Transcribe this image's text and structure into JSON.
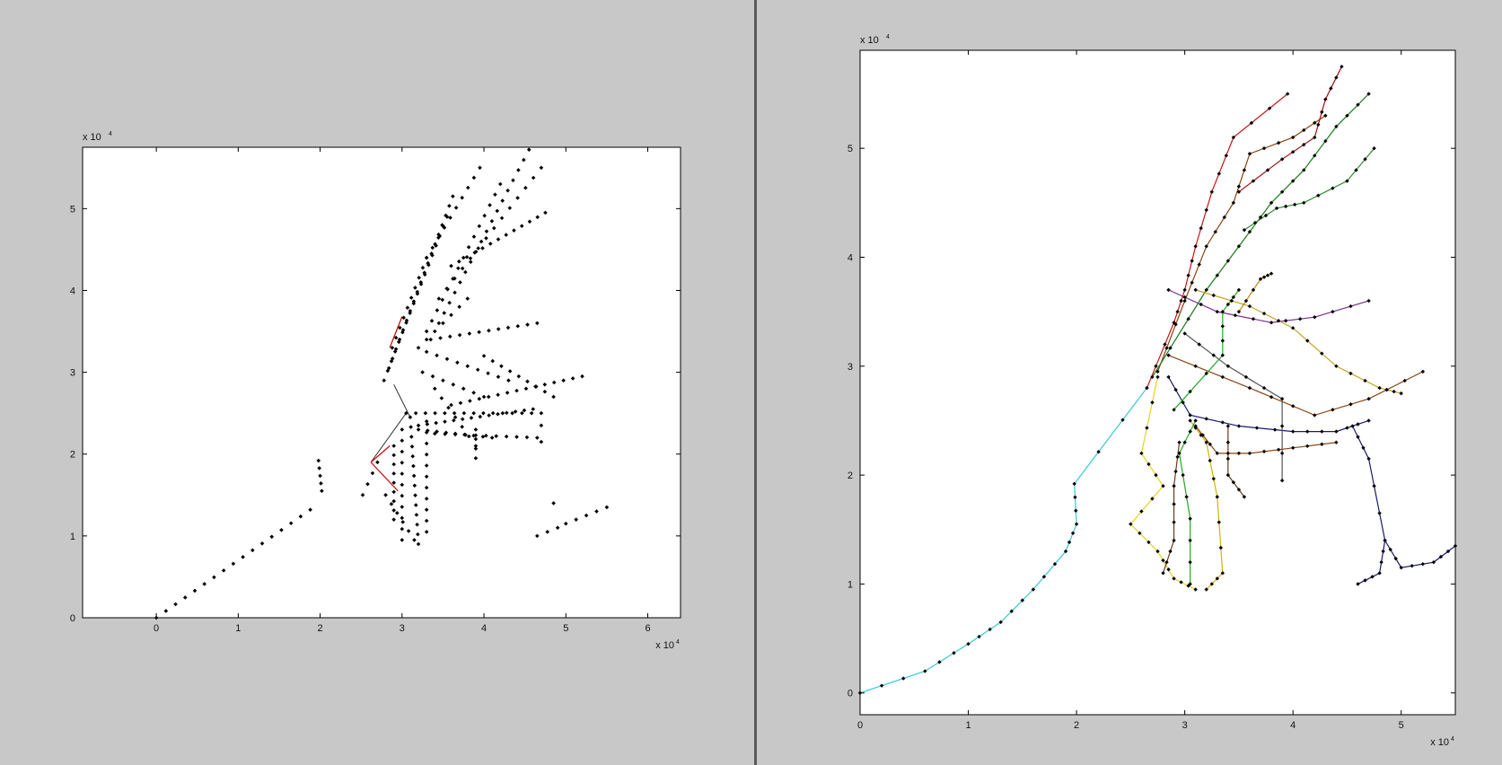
{
  "chart_data": [
    {
      "type": "scatter",
      "title": "",
      "xlabel": "",
      "ylabel": "",
      "x_multiplier": "x 10",
      "y_multiplier": "x 10",
      "exponent": "4",
      "xlim": [
        -0.9,
        6.4
      ],
      "ylim": [
        0,
        5.75
      ],
      "xticks": [
        0,
        1,
        2,
        3,
        4,
        5,
        6
      ],
      "yticks": [
        0,
        1,
        2,
        3,
        4,
        5
      ],
      "grid": false,
      "marker_color": "#000000",
      "highlight_color": "#cc0000",
      "highlight_segments": [
        [
          [
            2.62,
            1.9
          ],
          [
            2.95,
            1.55
          ]
        ],
        [
          [
            2.62,
            1.9
          ],
          [
            2.85,
            2.1
          ]
        ],
        [
          [
            2.85,
            3.3
          ],
          [
            3.0,
            3.68
          ]
        ]
      ],
      "connector_segments": [
        [
          [
            2.62,
            1.9
          ],
          [
            3.05,
            2.5
          ]
        ],
        [
          [
            2.9,
            2.85
          ],
          [
            3.1,
            2.45
          ]
        ]
      ],
      "point_lines": [
        {
          "from": [
            0.0,
            0.0
          ],
          "to": [
            1.88,
            1.32
          ],
          "n": 17
        },
        {
          "from": [
            1.98,
            1.92
          ],
          "to": [
            2.02,
            1.55
          ],
          "n": 5
        },
        {
          "from": [
            2.52,
            1.5
          ],
          "to": [
            2.7,
            1.9
          ],
          "n": 4
        },
        {
          "from": [
            2.88,
            3.3
          ],
          "to": [
            3.3,
            4.4
          ],
          "n": 10
        },
        {
          "from": [
            2.78,
            2.9
          ],
          "to": [
            3.55,
            4.9
          ],
          "n": 18
        },
        {
          "from": [
            2.84,
            3.05
          ],
          "to": [
            3.62,
            5.15
          ],
          "n": 19
        },
        {
          "from": [
            3.3,
            4.4
          ],
          "to": [
            3.95,
            5.5
          ],
          "n": 10
        },
        {
          "from": [
            3.3,
            3.5
          ],
          "to": [
            4.2,
            5.3
          ],
          "n": 15
        },
        {
          "from": [
            3.45,
            3.6
          ],
          "to": [
            4.55,
            5.72
          ],
          "n": 18
        },
        {
          "from": [
            3.45,
            3.9
          ],
          "to": [
            4.7,
            5.5
          ],
          "n": 14
        },
        {
          "from": [
            3.6,
            4.3
          ],
          "to": [
            4.75,
            4.95
          ],
          "n": 13
        },
        {
          "from": [
            3.2,
            3.3
          ],
          "to": [
            3.8,
            3.9
          ],
          "n": 7
        },
        {
          "from": [
            3.35,
            3.4
          ],
          "to": [
            4.65,
            3.6
          ],
          "n": 12
        },
        {
          "from": [
            3.3,
            3.25
          ],
          "to": [
            4.3,
            2.9
          ],
          "n": 9
        },
        {
          "from": [
            4.0,
            3.2
          ],
          "to": [
            4.85,
            2.7
          ],
          "n": 9
        },
        {
          "from": [
            3.25,
            3.0
          ],
          "to": [
            4.0,
            2.7
          ],
          "n": 7
        },
        {
          "from": [
            3.6,
            2.6
          ],
          "to": [
            5.2,
            2.95
          ],
          "n": 15
        },
        {
          "from": [
            3.05,
            2.5
          ],
          "to": [
            4.7,
            2.5
          ],
          "n": 15
        },
        {
          "from": [
            3.2,
            2.35
          ],
          "to": [
            4.6,
            2.55
          ],
          "n": 14
        },
        {
          "from": [
            3.2,
            2.3
          ],
          "to": [
            4.1,
            2.2
          ],
          "n": 9
        },
        {
          "from": [
            3.4,
            2.25
          ],
          "to": [
            4.65,
            2.2
          ],
          "n": 11
        },
        {
          "from": [
            3.9,
            2.3
          ],
          "to": [
            3.9,
            1.95
          ],
          "n": 4
        },
        {
          "from": [
            3.4,
            2.8
          ],
          "to": [
            3.9,
            2.1
          ],
          "n": 7
        },
        {
          "from": [
            3.1,
            2.45
          ],
          "to": [
            3.2,
            0.9
          ],
          "n": 14
        },
        {
          "from": [
            3.0,
            2.3
          ],
          "to": [
            3.0,
            0.95
          ],
          "n": 11
        },
        {
          "from": [
            2.9,
            2.1
          ],
          "to": [
            2.9,
            1.2
          ],
          "n": 9
        },
        {
          "from": [
            3.3,
            2.4
          ],
          "to": [
            3.3,
            1.05
          ],
          "n": 11
        },
        {
          "from": [
            2.8,
            1.5
          ],
          "to": [
            3.15,
            0.95
          ],
          "n": 6
        },
        {
          "from": [
            4.65,
            1.0
          ],
          "to": [
            4.9,
            1.1
          ],
          "n": 3
        },
        {
          "from": [
            5.0,
            1.15
          ],
          "to": [
            5.5,
            1.35
          ],
          "n": 5
        },
        {
          "from": [
            4.85,
            1.4
          ],
          "to": [
            4.85,
            1.4
          ],
          "n": 1
        },
        {
          "from": [
            4.7,
            2.35
          ],
          "to": [
            4.7,
            2.15
          ],
          "n": 2
        }
      ]
    },
    {
      "type": "line",
      "title": "",
      "xlabel": "",
      "ylabel": "",
      "x_multiplier": "x 10",
      "y_multiplier": "x 10",
      "exponent": "4",
      "xlim": [
        0,
        5.5
      ],
      "ylim": [
        -0.2,
        5.9
      ],
      "xticks": [
        0,
        1,
        2,
        3,
        4,
        5
      ],
      "yticks": [
        0,
        1,
        2,
        3,
        4,
        5
      ],
      "grid": false,
      "marker_color": "#000000",
      "series": [
        {
          "color": "#37c8d2",
          "points": [
            [
              0.0,
              0.0
            ],
            [
              0.6,
              0.2
            ],
            [
              1.0,
              0.45
            ],
            [
              1.3,
              0.65
            ],
            [
              1.6,
              0.95
            ],
            [
              1.9,
              1.3
            ],
            [
              2.0,
              1.55
            ],
            [
              1.98,
              1.92
            ],
            [
              2.65,
              2.8
            ]
          ]
        },
        {
          "color": "#c81414",
          "points": [
            [
              2.65,
              2.8
            ],
            [
              2.9,
              3.4
            ],
            [
              3.0,
              3.7
            ],
            [
              3.1,
              4.1
            ],
            [
              3.25,
              4.6
            ],
            [
              3.45,
              5.1
            ],
            [
              3.95,
              5.5
            ]
          ]
        },
        {
          "color": "#8b4513",
          "points": [
            [
              2.75,
              2.95
            ],
            [
              3.0,
              3.6
            ],
            [
              3.2,
              4.1
            ],
            [
              3.45,
              4.5
            ],
            [
              3.6,
              4.95
            ],
            [
              4.0,
              5.1
            ],
            [
              4.3,
              5.3
            ]
          ]
        },
        {
          "color": "#a01010",
          "points": [
            [
              3.5,
              4.6
            ],
            [
              3.9,
              4.9
            ],
            [
              4.2,
              5.1
            ],
            [
              4.3,
              5.45
            ],
            [
              4.45,
              5.75
            ]
          ]
        },
        {
          "color": "#1a7a1a",
          "points": [
            [
              2.7,
              2.9
            ],
            [
              3.2,
              3.7
            ],
            [
              3.5,
              4.1
            ],
            [
              3.8,
              4.5
            ],
            [
              4.1,
              4.8
            ],
            [
              4.4,
              5.2
            ],
            [
              4.7,
              5.5
            ]
          ]
        },
        {
          "color": "#2e8b2e",
          "points": [
            [
              3.55,
              4.25
            ],
            [
              3.85,
              4.45
            ],
            [
              4.1,
              4.5
            ],
            [
              4.5,
              4.7
            ],
            [
              4.75,
              5.0
            ]
          ]
        },
        {
          "color": "#7b2d8b",
          "points": [
            [
              2.85,
              3.7
            ],
            [
              3.3,
              3.5
            ],
            [
              3.8,
              3.4
            ],
            [
              4.2,
              3.45
            ],
            [
              4.7,
              3.6
            ]
          ]
        },
        {
          "color": "#c8a028",
          "points": [
            [
              3.1,
              3.7
            ],
            [
              3.6,
              3.55
            ],
            [
              4.0,
              3.35
            ],
            [
              4.4,
              3.0
            ],
            [
              4.8,
              2.8
            ],
            [
              5.0,
              2.75
            ]
          ]
        },
        {
          "color": "#b8860b",
          "points": [
            [
              3.5,
              3.5
            ],
            [
              3.7,
              3.8
            ],
            [
              3.8,
              3.85
            ]
          ]
        },
        {
          "color": "#8b4513",
          "points": [
            [
              2.85,
              3.1
            ],
            [
              3.6,
              2.8
            ],
            [
              4.2,
              2.55
            ],
            [
              4.7,
              2.7
            ],
            [
              5.2,
              2.95
            ]
          ]
        },
        {
          "color": "#191970",
          "points": [
            [
              2.85,
              2.9
            ],
            [
              3.05,
              2.55
            ],
            [
              3.5,
              2.45
            ],
            [
              4.0,
              2.4
            ],
            [
              4.4,
              2.4
            ],
            [
              4.7,
              2.5
            ]
          ]
        },
        {
          "color": "#191970",
          "points": [
            [
              4.55,
              2.45
            ],
            [
              4.7,
              2.15
            ],
            [
              4.85,
              1.4
            ],
            [
              5.0,
              1.15
            ],
            [
              5.3,
              1.2
            ],
            [
              5.5,
              1.35
            ]
          ]
        },
        {
          "color": "#191970",
          "points": [
            [
              4.6,
              1.0
            ],
            [
              4.8,
              1.1
            ],
            [
              4.85,
              1.4
            ]
          ]
        },
        {
          "color": "#e6d21e",
          "points": [
            [
              2.75,
              2.9
            ],
            [
              2.6,
              2.2
            ],
            [
              2.8,
              1.9
            ],
            [
              2.5,
              1.55
            ],
            [
              2.75,
              1.3
            ],
            [
              2.9,
              1.05
            ],
            [
              3.1,
              0.95
            ]
          ]
        },
        {
          "color": "#d4b400",
          "points": [
            [
              3.05,
              2.5
            ],
            [
              3.2,
              2.3
            ],
            [
              3.3,
              1.8
            ],
            [
              3.35,
              1.1
            ],
            [
              3.2,
              0.95
            ]
          ]
        },
        {
          "color": "#22aa22",
          "points": [
            [
              2.9,
              2.6
            ],
            [
              3.35,
              3.1
            ],
            [
              3.35,
              3.5
            ],
            [
              3.5,
              3.7
            ]
          ]
        },
        {
          "color": "#22aa22",
          "points": [
            [
              3.1,
              2.5
            ],
            [
              2.95,
              2.2
            ],
            [
              3.05,
              1.6
            ],
            [
              3.05,
              1.0
            ]
          ]
        },
        {
          "color": "#555555",
          "points": [
            [
              3.0,
              3.3
            ],
            [
              3.4,
              3.0
            ],
            [
              3.9,
              2.7
            ],
            [
              3.9,
              1.95
            ]
          ]
        },
        {
          "color": "#8b4513",
          "points": [
            [
              3.1,
              2.45
            ],
            [
              3.3,
              2.2
            ],
            [
              3.6,
              2.2
            ],
            [
              4.0,
              2.25
            ],
            [
              4.4,
              2.3
            ]
          ]
        },
        {
          "color": "#6b3a1a",
          "points": [
            [
              2.95,
              2.3
            ],
            [
              2.9,
              1.9
            ],
            [
              2.9,
              1.4
            ],
            [
              2.8,
              1.1
            ]
          ]
        },
        {
          "color": "#6b3a1a",
          "points": [
            [
              3.4,
              2.45
            ],
            [
              3.4,
              2.0
            ],
            [
              3.55,
              1.8
            ]
          ]
        }
      ]
    }
  ]
}
